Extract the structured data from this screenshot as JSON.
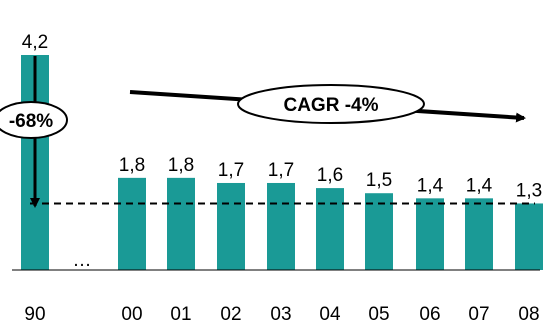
{
  "chart_data": {
    "type": "bar",
    "categories": [
      "90",
      "…",
      "00",
      "01",
      "02",
      "03",
      "04",
      "05",
      "06",
      "07",
      "08"
    ],
    "values": [
      4.2,
      null,
      1.8,
      1.8,
      1.7,
      1.7,
      1.6,
      1.5,
      1.4,
      1.4,
      1.3
    ],
    "value_labels": [
      "4,2",
      "",
      "1,8",
      "1,8",
      "1,7",
      "1,7",
      "1,6",
      "1,5",
      "1,4",
      "1,4",
      "1,3"
    ],
    "ylim": [
      0,
      4.2
    ],
    "grid": false,
    "legend": "none",
    "bar_color": "#1a9a96",
    "reference_line": {
      "value": 1.3,
      "style": "dashed"
    },
    "annotations": [
      {
        "text": "-68%",
        "kind": "drop-arrow"
      },
      {
        "text": "CAGR -4%",
        "kind": "trend-arrow"
      }
    ],
    "gap_marker": "…"
  }
}
